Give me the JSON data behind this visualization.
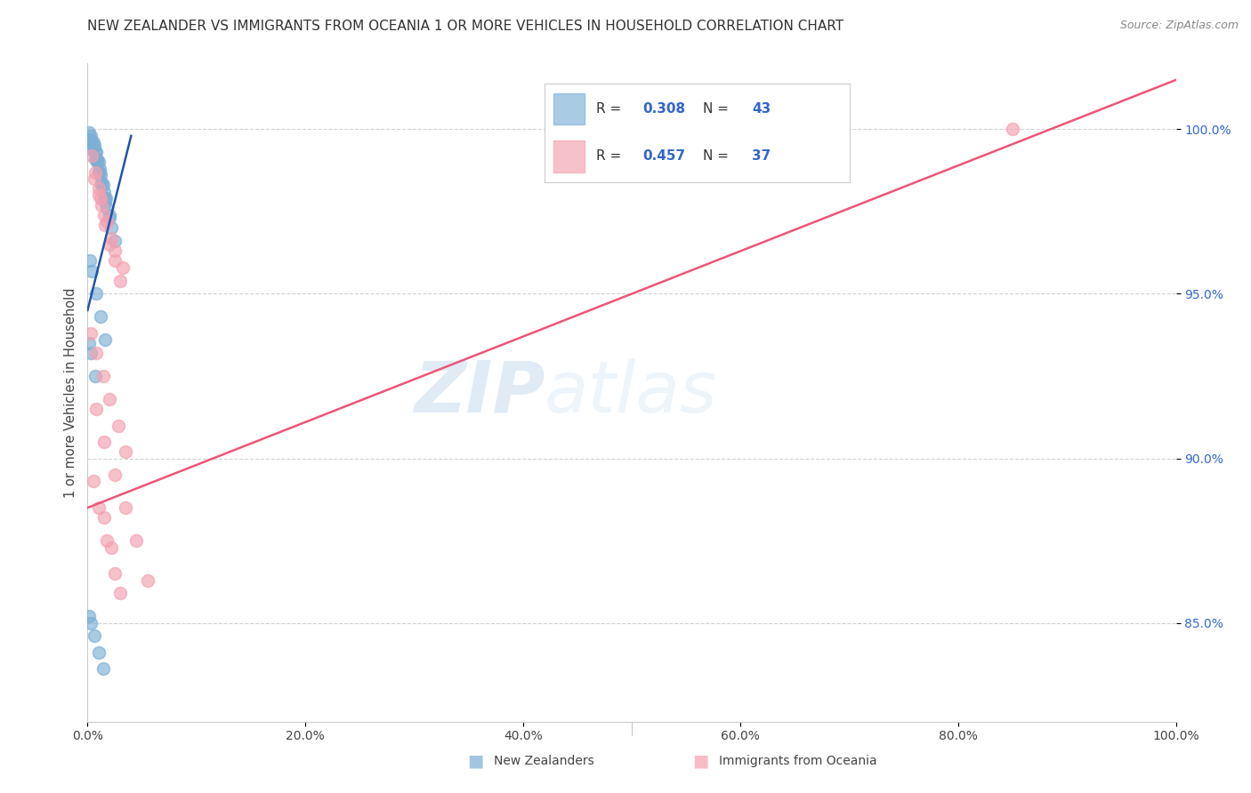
{
  "title": "NEW ZEALANDER VS IMMIGRANTS FROM OCEANIA 1 OR MORE VEHICLES IN HOUSEHOLD CORRELATION CHART",
  "source": "Source: ZipAtlas.com",
  "ylabel": "1 or more Vehicles in Household",
  "xmin": 0.0,
  "xmax": 100.0,
  "ymin": 82.0,
  "ymax": 102.0,
  "yticks": [
    85.0,
    90.0,
    95.0,
    100.0
  ],
  "xticks": [
    0.0,
    20.0,
    40.0,
    60.0,
    80.0,
    100.0
  ],
  "blue_R": 0.308,
  "blue_N": 43,
  "pink_R": 0.457,
  "pink_N": 37,
  "blue_color": "#7BAFD4",
  "pink_color": "#F4A0B0",
  "blue_line_color": "#2255AA",
  "pink_line_color": "#EE5577",
  "watermark_zip": "ZIP",
  "watermark_atlas": "atlas",
  "blue_scatter_x": [
    0.3,
    0.5,
    0.6,
    0.8,
    0.9,
    1.0,
    1.1,
    1.2,
    1.3,
    1.5,
    1.6,
    1.8,
    2.0,
    2.2,
    2.5,
    0.2,
    0.4,
    0.7,
    1.0,
    1.3,
    1.6,
    0.1,
    0.3,
    0.5,
    0.7,
    0.9,
    1.1,
    1.4,
    1.7,
    2.0,
    0.2,
    0.4,
    0.8,
    1.2,
    1.6,
    0.1,
    0.3,
    0.6,
    1.0,
    1.4,
    0.1,
    0.3,
    0.7
  ],
  "blue_scatter_y": [
    99.8,
    99.6,
    99.5,
    99.3,
    99.1,
    99.0,
    98.8,
    98.6,
    98.4,
    98.1,
    97.9,
    97.6,
    97.3,
    97.0,
    96.6,
    99.7,
    99.4,
    99.1,
    98.7,
    98.3,
    97.8,
    99.9,
    99.7,
    99.5,
    99.3,
    99.0,
    98.7,
    98.3,
    97.9,
    97.4,
    96.0,
    95.7,
    95.0,
    94.3,
    93.6,
    85.2,
    85.0,
    84.6,
    84.1,
    83.6,
    93.5,
    93.2,
    92.5
  ],
  "pink_scatter_x": [
    0.4,
    0.7,
    1.0,
    1.3,
    1.6,
    2.0,
    2.5,
    3.0,
    1.2,
    1.8,
    2.5,
    0.6,
    1.0,
    1.5,
    2.2,
    3.2,
    0.3,
    0.8,
    1.4,
    2.0,
    2.8,
    3.5,
    0.5,
    1.0,
    1.8,
    2.5,
    3.0,
    1.5,
    2.2,
    0.8,
    1.5,
    2.5,
    3.5,
    4.5,
    5.5,
    55.0,
    85.0
  ],
  "pink_scatter_y": [
    99.2,
    98.7,
    98.2,
    97.7,
    97.1,
    96.5,
    96.0,
    95.4,
    97.9,
    97.2,
    96.3,
    98.5,
    98.0,
    97.4,
    96.7,
    95.8,
    93.8,
    93.2,
    92.5,
    91.8,
    91.0,
    90.2,
    89.3,
    88.5,
    87.5,
    86.5,
    85.9,
    88.2,
    87.3,
    91.5,
    90.5,
    89.5,
    88.5,
    87.5,
    86.3,
    99.8,
    100.0
  ],
  "blue_line_x0": 0.0,
  "blue_line_y0": 94.5,
  "blue_line_x1": 4.0,
  "blue_line_y1": 99.8,
  "pink_line_x0": 0.0,
  "pink_line_y0": 88.5,
  "pink_line_x1": 100.0,
  "pink_line_y1": 101.5
}
